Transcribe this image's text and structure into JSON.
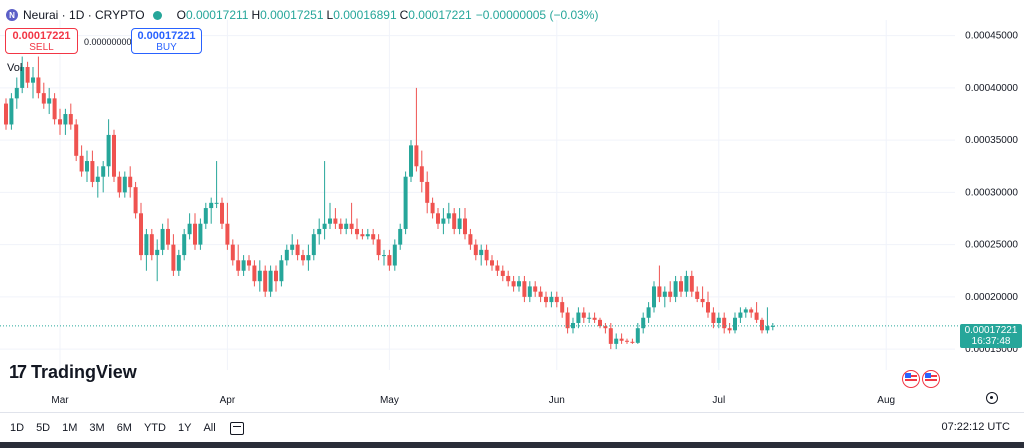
{
  "header": {
    "symbol": "Neurai · 1D · CRYPTO",
    "logo_letter": "N",
    "ohlc": {
      "o_label": "O",
      "o": "0.00017211",
      "h_label": "H",
      "h": "0.00017251",
      "l_label": "L",
      "l": "0.00016891",
      "c_label": "C",
      "c": "0.00017221",
      "change": "−0.00000005 (−0.03%)"
    }
  },
  "trade": {
    "sell_price": "0.00017221",
    "sell_label": "SELL",
    "buy_price": "0.00017221",
    "buy_label": "BUY",
    "spread": "0.00000000"
  },
  "vol_label": "Vol",
  "brand": "TradingView",
  "price_tag": {
    "price": "0.00017221",
    "countdown": "16:37:48"
  },
  "range_buttons": [
    "1D",
    "5D",
    "1M",
    "3M",
    "6M",
    "YTD",
    "1Y",
    "All"
  ],
  "clock": "07:22:12 UTC",
  "colors": {
    "up": "#26a69a",
    "down": "#ef5350",
    "accent": "#2962ff",
    "grid": "#f0f3fa"
  },
  "icons": [
    "calendar-icon",
    "settings-icon",
    "flag-icon"
  ],
  "chart_data": {
    "type": "candlestick",
    "title": "Neurai · 1D · CRYPTO",
    "y_ticks": [
      "0.00045000",
      "0.00040000",
      "0.00035000",
      "0.00030000",
      "0.00025000",
      "0.00020000",
      "0.00015000"
    ],
    "ylim": [
      0.00013,
      0.000465
    ],
    "x_ticks": [
      "Mar",
      "Apr",
      "May",
      "Jun",
      "Jul",
      "Aug"
    ],
    "x_tick_days": [
      10,
      41,
      71,
      102,
      132,
      163
    ],
    "last_price": 0.00017221,
    "candles": [
      [
        0.000385,
        0.00039,
        0.00036,
        0.000365
      ],
      [
        0.000365,
        0.000395,
        0.00036,
        0.00039
      ],
      [
        0.00039,
        0.00041,
        0.00038,
        0.0004
      ],
      [
        0.0004,
        0.00043,
        0.000395,
        0.00042
      ],
      [
        0.00042,
        0.000425,
        0.0004,
        0.000405
      ],
      [
        0.000405,
        0.00042,
        0.00039,
        0.00041
      ],
      [
        0.00041,
        0.00043,
        0.00039,
        0.000395
      ],
      [
        0.000395,
        0.000405,
        0.00038,
        0.000385
      ],
      [
        0.000385,
        0.0004,
        0.000375,
        0.00039
      ],
      [
        0.00039,
        0.000395,
        0.000365,
        0.00037
      ],
      [
        0.00037,
        0.00038,
        0.000355,
        0.000365
      ],
      [
        0.000365,
        0.00038,
        0.000355,
        0.000375
      ],
      [
        0.000375,
        0.000385,
        0.00036,
        0.000365
      ],
      [
        0.000365,
        0.00037,
        0.00033,
        0.000335
      ],
      [
        0.000335,
        0.000345,
        0.000315,
        0.00032
      ],
      [
        0.00032,
        0.00034,
        0.00031,
        0.00033
      ],
      [
        0.00033,
        0.00034,
        0.000305,
        0.00031
      ],
      [
        0.00031,
        0.000325,
        0.000295,
        0.000315
      ],
      [
        0.000315,
        0.00033,
        0.0003,
        0.000325
      ],
      [
        0.000325,
        0.00037,
        0.000315,
        0.000355
      ],
      [
        0.000355,
        0.00036,
        0.00031,
        0.000315
      ],
      [
        0.000315,
        0.00032,
        0.000295,
        0.0003
      ],
      [
        0.0003,
        0.00032,
        0.000295,
        0.000315
      ],
      [
        0.000315,
        0.000325,
        0.000295,
        0.000305
      ],
      [
        0.000305,
        0.00031,
        0.000275,
        0.00028
      ],
      [
        0.00028,
        0.00029,
        0.000235,
        0.00024
      ],
      [
        0.00024,
        0.000265,
        0.000225,
        0.00026
      ],
      [
        0.00026,
        0.000265,
        0.000235,
        0.00024
      ],
      [
        0.00024,
        0.000255,
        0.000215,
        0.000245
      ],
      [
        0.000245,
        0.00027,
        0.00024,
        0.000265
      ],
      [
        0.000265,
        0.000275,
        0.000245,
        0.00025
      ],
      [
        0.00025,
        0.00026,
        0.00022,
        0.000225
      ],
      [
        0.000225,
        0.000245,
        0.00022,
        0.00024
      ],
      [
        0.00024,
        0.000265,
        0.000235,
        0.00026
      ],
      [
        0.00026,
        0.00028,
        0.000255,
        0.00027
      ],
      [
        0.00027,
        0.00028,
        0.000245,
        0.00025
      ],
      [
        0.00025,
        0.000275,
        0.000245,
        0.00027
      ],
      [
        0.00027,
        0.00029,
        0.000265,
        0.000285
      ],
      [
        0.000285,
        0.000295,
        0.00027,
        0.00029
      ],
      [
        0.00029,
        0.00033,
        0.000285,
        0.00029
      ],
      [
        0.00029,
        0.000295,
        0.000265,
        0.00027
      ],
      [
        0.00027,
        0.00029,
        0.000245,
        0.00025
      ],
      [
        0.00025,
        0.000255,
        0.00023,
        0.000235
      ],
      [
        0.000235,
        0.00025,
        0.00022,
        0.000225
      ],
      [
        0.000225,
        0.00024,
        0.00022,
        0.000235
      ],
      [
        0.000235,
        0.00024,
        0.000225,
        0.00023
      ],
      [
        0.00023,
        0.000235,
        0.00021,
        0.000215
      ],
      [
        0.000215,
        0.000235,
        0.000205,
        0.000225
      ],
      [
        0.000225,
        0.00023,
        0.0002,
        0.000205
      ],
      [
        0.000205,
        0.00023,
        0.0002,
        0.000225
      ],
      [
        0.000225,
        0.00023,
        0.000205,
        0.000215
      ],
      [
        0.000215,
        0.00024,
        0.00021,
        0.000235
      ],
      [
        0.000235,
        0.00025,
        0.00023,
        0.000245
      ],
      [
        0.000245,
        0.00026,
        0.00024,
        0.00025
      ],
      [
        0.00025,
        0.000255,
        0.000235,
        0.00024
      ],
      [
        0.00024,
        0.000245,
        0.00023,
        0.000235
      ],
      [
        0.000235,
        0.00025,
        0.000225,
        0.00024
      ],
      [
        0.00024,
        0.000265,
        0.000235,
        0.00026
      ],
      [
        0.00026,
        0.000275,
        0.00025,
        0.000265
      ],
      [
        0.000265,
        0.00033,
        0.000255,
        0.00027
      ],
      [
        0.00027,
        0.00029,
        0.000265,
        0.000275
      ],
      [
        0.000275,
        0.000285,
        0.000265,
        0.00027
      ],
      [
        0.00027,
        0.000275,
        0.00026,
        0.000265
      ],
      [
        0.000265,
        0.000275,
        0.00026,
        0.00027
      ],
      [
        0.00027,
        0.00029,
        0.00026,
        0.000265
      ],
      [
        0.000265,
        0.000275,
        0.000255,
        0.00026
      ],
      [
        0.00026,
        0.000265,
        0.000255,
        0.000258
      ],
      [
        0.000258,
        0.000265,
        0.000255,
        0.00026
      ],
      [
        0.00026,
        0.000265,
        0.00025,
        0.000255
      ],
      [
        0.000255,
        0.00026,
        0.000235,
        0.00024
      ],
      [
        0.00024,
        0.000245,
        0.00023,
        0.00024
      ],
      [
        0.00024,
        0.000245,
        0.000225,
        0.00023
      ],
      [
        0.00023,
        0.000255,
        0.000225,
        0.00025
      ],
      [
        0.00025,
        0.00027,
        0.000245,
        0.000265
      ],
      [
        0.000265,
        0.00032,
        0.00026,
        0.000315
      ],
      [
        0.000315,
        0.00035,
        0.00031,
        0.000345
      ],
      [
        0.000345,
        0.0004,
        0.00032,
        0.000325
      ],
      [
        0.000325,
        0.00034,
        0.0003,
        0.00031
      ],
      [
        0.00031,
        0.00032,
        0.00028,
        0.00029
      ],
      [
        0.00029,
        0.000295,
        0.000275,
        0.00028
      ],
      [
        0.00028,
        0.000285,
        0.000265,
        0.00027
      ],
      [
        0.00027,
        0.000285,
        0.00026,
        0.000275
      ],
      [
        0.000275,
        0.00029,
        0.00027,
        0.00028
      ],
      [
        0.00028,
        0.000285,
        0.00026,
        0.000265
      ],
      [
        0.000265,
        0.000285,
        0.00026,
        0.000275
      ],
      [
        0.000275,
        0.000285,
        0.000255,
        0.00026
      ],
      [
        0.00026,
        0.000265,
        0.000245,
        0.00025
      ],
      [
        0.00025,
        0.000255,
        0.000235,
        0.00024
      ],
      [
        0.00024,
        0.00025,
        0.00023,
        0.000245
      ],
      [
        0.000245,
        0.00025,
        0.00023,
        0.000235
      ],
      [
        0.000235,
        0.00024,
        0.000225,
        0.00023
      ],
      [
        0.00023,
        0.000235,
        0.00022,
        0.000225
      ],
      [
        0.000225,
        0.00023,
        0.000215,
        0.00022
      ],
      [
        0.00022,
        0.000225,
        0.00021,
        0.000215
      ],
      [
        0.000215,
        0.00022,
        0.000205,
        0.00021
      ],
      [
        0.00021,
        0.00022,
        0.000205,
        0.000215
      ],
      [
        0.000215,
        0.00022,
        0.000195,
        0.0002
      ],
      [
        0.0002,
        0.000215,
        0.000195,
        0.00021
      ],
      [
        0.00021,
        0.000215,
        0.0002,
        0.000205
      ],
      [
        0.000205,
        0.00021,
        0.000195,
        0.0002
      ],
      [
        0.0002,
        0.000205,
        0.00019,
        0.000195
      ],
      [
        0.000195,
        0.000205,
        0.00019,
        0.0002
      ],
      [
        0.0002,
        0.000205,
        0.00019,
        0.000195
      ],
      [
        0.000195,
        0.0002,
        0.00018,
        0.000185
      ],
      [
        0.000185,
        0.00019,
        0.000165,
        0.00017
      ],
      [
        0.00017,
        0.00018,
        0.000165,
        0.000175
      ],
      [
        0.000175,
        0.00019,
        0.00017,
        0.000185
      ],
      [
        0.000185,
        0.00019,
        0.000175,
        0.00018
      ],
      [
        0.00018,
        0.000185,
        0.000175,
        0.00018
      ],
      [
        0.00018,
        0.000185,
        0.000175,
        0.000178
      ],
      [
        0.000178,
        0.00018,
        0.00017,
        0.000172
      ],
      [
        0.000172,
        0.000175,
        0.000165,
        0.00017
      ],
      [
        0.00017,
        0.000175,
        0.00015,
        0.000155
      ],
      [
        0.000155,
        0.000165,
        0.00015,
        0.00016
      ],
      [
        0.00016,
        0.000165,
        0.000155,
        0.000158
      ],
      [
        0.000158,
        0.00016,
        0.000155,
        0.000157
      ],
      [
        0.000157,
        0.00016,
        0.000155,
        0.000156
      ],
      [
        0.000156,
        0.000175,
        0.000155,
        0.00017
      ],
      [
        0.00017,
        0.000185,
        0.000165,
        0.00018
      ],
      [
        0.00018,
        0.000195,
        0.000175,
        0.00019
      ],
      [
        0.00019,
        0.000215,
        0.000185,
        0.00021
      ],
      [
        0.00021,
        0.00023,
        0.000195,
        0.0002
      ],
      [
        0.0002,
        0.00021,
        0.00019,
        0.000205
      ],
      [
        0.000205,
        0.000215,
        0.000195,
        0.0002
      ],
      [
        0.0002,
        0.00022,
        0.000195,
        0.000215
      ],
      [
        0.000215,
        0.00022,
        0.0002,
        0.000205
      ],
      [
        0.000205,
        0.000225,
        0.0002,
        0.00022
      ],
      [
        0.00022,
        0.000225,
        0.0002,
        0.000205
      ],
      [
        0.000205,
        0.00021,
        0.000195,
        0.000198
      ],
      [
        0.000198,
        0.00021,
        0.00019,
        0.000195
      ],
      [
        0.000195,
        0.000205,
        0.00018,
        0.000185
      ],
      [
        0.000185,
        0.00019,
        0.00017,
        0.000175
      ],
      [
        0.000175,
        0.000185,
        0.00017,
        0.00018
      ],
      [
        0.00018,
        0.000185,
        0.000165,
        0.00017
      ],
      [
        0.00017,
        0.000175,
        0.000165,
        0.000168
      ],
      [
        0.000168,
        0.000185,
        0.000165,
        0.00018
      ],
      [
        0.00018,
        0.00019,
        0.000175,
        0.000185
      ],
      [
        0.000185,
        0.00019,
        0.00018,
        0.000188
      ],
      [
        0.000188,
        0.00019,
        0.00018,
        0.000185
      ],
      [
        0.000185,
        0.000195,
        0.000175,
        0.000178
      ],
      [
        0.000178,
        0.00018,
        0.000165,
        0.000168
      ],
      [
        0.000168,
        0.00019,
        0.000165,
        0.000172
      ],
      [
        0.000172,
        0.000175,
        0.000168,
        0.00017221
      ]
    ]
  }
}
